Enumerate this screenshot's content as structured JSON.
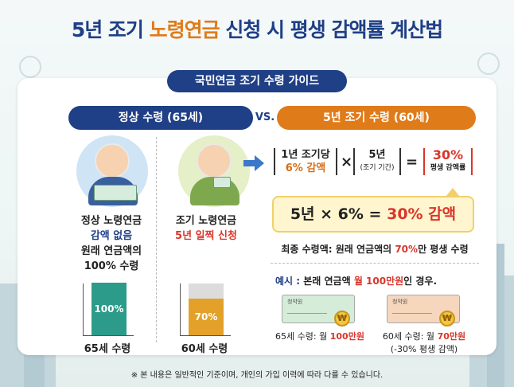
{
  "title": {
    "part1": "5년 조기 ",
    "part2": "노령연금",
    "part3": " 신청 시 평생 감액률 계산법"
  },
  "ribbon": "국민연금 조기 수령 가이드",
  "left_header": "정상 수령 (65세)",
  "vs": "VS.",
  "right_header": "5년 조기 수령 (60세)",
  "normal": {
    "line1": "정상 노령연금",
    "line2": "감액 없음",
    "line3": "원래 연금액의",
    "line4": "100% 수령",
    "bar_label": "100%",
    "bar_value": 100,
    "axis": "65세 수령"
  },
  "early": {
    "line1": "조기 노령연금",
    "line2": "5년 일찍 신청",
    "bar_label": "70%",
    "bar_value": 70,
    "axis": "60세 수령"
  },
  "formula": {
    "a_line1": "1년 조기당",
    "a_line2": "6% 감액",
    "times": "×",
    "b_line1": "5년",
    "b_line2": "(조기 기간)",
    "equals": "=",
    "c_line1": "30%",
    "c_line2": "평생 감액률"
  },
  "calc": {
    "part1": "5년 × 6% = ",
    "part2": "30% 감액"
  },
  "final": {
    "part1": "최종 수령액: 원래 연금액의 ",
    "part2": "70%",
    "part3": "만 평생 수령"
  },
  "example": {
    "part1": "예시 : ",
    "part2": "본래 연금액 ",
    "part3": "월 100만원",
    "part4": "인 경우."
  },
  "cheque_text": "청약원",
  "coin_symbol": "₩",
  "ex_left": {
    "part1": "65세 수령: 월 ",
    "part2": "100만원"
  },
  "ex_right": {
    "part1": "60세 수령: 월 ",
    "part2": "70만원",
    "line2": "(-30% 평생 감액)"
  },
  "footer": "※ 본 내용은 일반적인 기준이며, 개인의 가입 이력에 따라 다를 수 있습니다.",
  "colors": {
    "navy": "#1f3f86",
    "orange": "#e07b1a",
    "teal": "#2c9b8a",
    "amber": "#e3a12a",
    "red": "#d9362b"
  }
}
